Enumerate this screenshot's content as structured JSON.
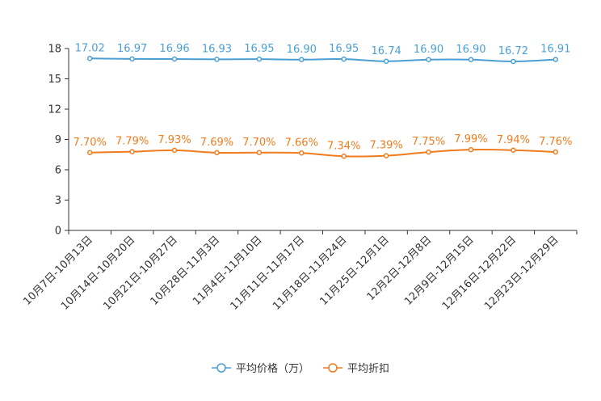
{
  "chart_data": {
    "type": "line",
    "title": "",
    "xlabel": "",
    "ylabel": "",
    "ylim": [
      0,
      18
    ],
    "yticks": [
      0,
      3,
      6,
      9,
      12,
      15,
      18
    ],
    "grid": false,
    "legend_position": "bottom-center",
    "categories": [
      "10月7日-10月13日",
      "10月14日-10月20日",
      "10月21日-10月27日",
      "10月28日-11月3日",
      "11月4日-11月10日",
      "11月11日-11月17日",
      "11月18日-11月24日",
      "11月25日-12月1日",
      "12月2日-12月8日",
      "12月9日-12月15日",
      "12月16日-12月22日",
      "12月23日-12月29日"
    ],
    "series": [
      {
        "name": "平均价格（万）",
        "color": "#4a9fd4",
        "values": [
          17.02,
          16.97,
          16.96,
          16.93,
          16.95,
          16.9,
          16.95,
          16.74,
          16.9,
          16.9,
          16.72,
          16.91
        ],
        "labels": [
          "17.02",
          "16.97",
          "16.96",
          "16.93",
          "16.95",
          "16.90",
          "16.95",
          "16.74",
          "16.90",
          "16.90",
          "16.72",
          "16.91"
        ]
      },
      {
        "name": "平均折扣",
        "color": "#f07c1e",
        "values": [
          7.7,
          7.79,
          7.93,
          7.69,
          7.7,
          7.66,
          7.34,
          7.39,
          7.75,
          7.99,
          7.94,
          7.76
        ],
        "labels": [
          "7.70%",
          "7.79%",
          "7.93%",
          "7.69%",
          "7.70%",
          "7.66%",
          "7.34%",
          "7.39%",
          "7.75%",
          "7.99%",
          "7.94%",
          "7.76%"
        ]
      }
    ]
  }
}
